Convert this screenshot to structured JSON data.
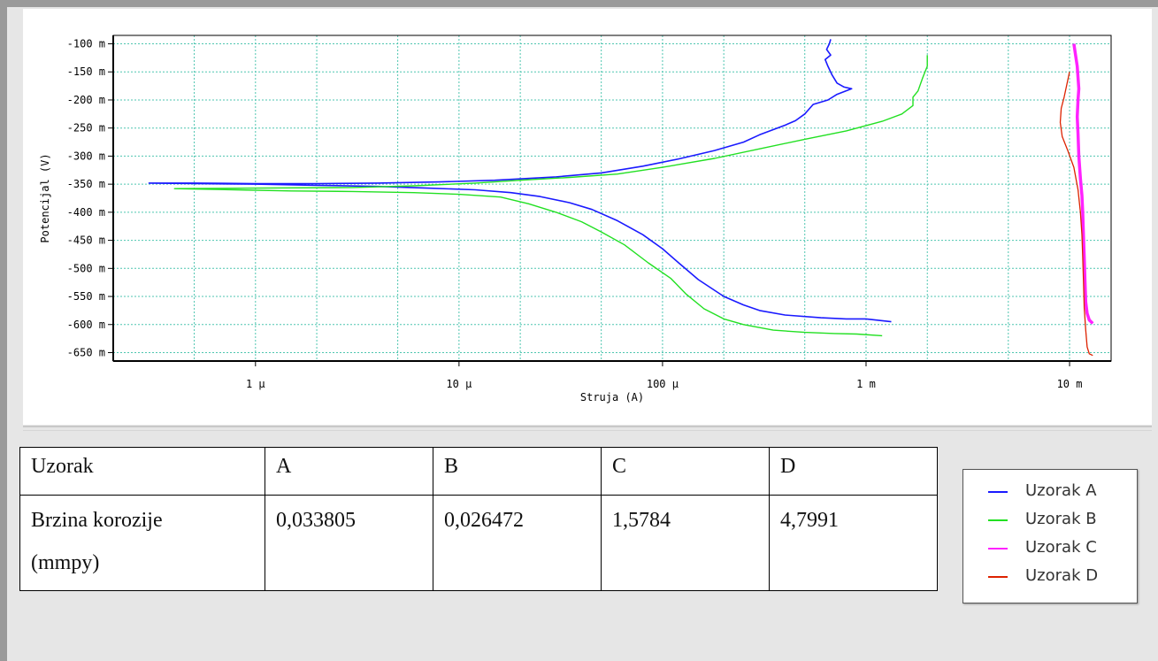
{
  "chart_data": {
    "type": "line",
    "xlabel": "Struja (A)",
    "ylabel": "Potencijal (V)",
    "x_scale": "log",
    "xlim": [
      2e-07,
      0.016
    ],
    "ylim": [
      -665,
      -85
    ],
    "grid": true,
    "x_ticks": [
      {
        "value": 1e-06,
        "label": "1 µ"
      },
      {
        "value": 1e-05,
        "label": "10 µ"
      },
      {
        "value": 0.0001,
        "label": "100 µ"
      },
      {
        "value": 0.001,
        "label": "1 m"
      },
      {
        "value": 0.01,
        "label": "10 m"
      }
    ],
    "y_ticks": [
      {
        "value": -100,
        "label": "-100 m"
      },
      {
        "value": -150,
        "label": "-150 m"
      },
      {
        "value": -200,
        "label": "-200 m"
      },
      {
        "value": -250,
        "label": "-250 m"
      },
      {
        "value": -300,
        "label": "-300 m"
      },
      {
        "value": -350,
        "label": "-350 m"
      },
      {
        "value": -400,
        "label": "-400 m"
      },
      {
        "value": -450,
        "label": "-450 m"
      },
      {
        "value": -500,
        "label": "-500 m"
      },
      {
        "value": -550,
        "label": "-550 m"
      },
      {
        "value": -600,
        "label": "-600 m"
      },
      {
        "value": -650,
        "label": "-650 m"
      }
    ],
    "series": [
      {
        "name": "Uzorak A",
        "color": "#1a1aff",
        "width": 1.6,
        "points": [
          [
            0.00133,
            -595
          ],
          [
            0.001,
            -590
          ],
          [
            0.0008,
            -590
          ],
          [
            0.0006,
            -588
          ],
          [
            0.0004,
            -583
          ],
          [
            0.0003,
            -575
          ],
          [
            0.00025,
            -565
          ],
          [
            0.0002,
            -550
          ],
          [
            0.00015,
            -520
          ],
          [
            0.00012,
            -490
          ],
          [
            0.0001,
            -465
          ],
          [
            8e-05,
            -440
          ],
          [
            6e-05,
            -415
          ],
          [
            4.5e-05,
            -395
          ],
          [
            3.5e-05,
            -383
          ],
          [
            2.5e-05,
            -372
          ],
          [
            1.8e-05,
            -365
          ],
          [
            1.2e-05,
            -360
          ],
          [
            7e-06,
            -357
          ],
          [
            4e-06,
            -354
          ],
          [
            2e-06,
            -352
          ],
          [
            1e-06,
            -350
          ],
          [
            5e-07,
            -349
          ],
          [
            3e-07,
            -348
          ],
          [
            5e-07,
            -348
          ],
          [
            1e-06,
            -349
          ],
          [
            2e-06,
            -349
          ],
          [
            4e-06,
            -348
          ],
          [
            8e-06,
            -346
          ],
          [
            1.5e-05,
            -343
          ],
          [
            3e-05,
            -337
          ],
          [
            5e-05,
            -330
          ],
          [
            8e-05,
            -318
          ],
          [
            0.00012,
            -305
          ],
          [
            0.00018,
            -290
          ],
          [
            0.00025,
            -275
          ],
          [
            0.0003,
            -262
          ],
          [
            0.0004,
            -245
          ],
          [
            0.00045,
            -237
          ],
          [
            0.0005,
            -225
          ],
          [
            0.00055,
            -208
          ],
          [
            0.00065,
            -200
          ],
          [
            0.00072,
            -190
          ],
          [
            0.00085,
            -180
          ],
          [
            0.00078,
            -177
          ],
          [
            0.00072,
            -170
          ],
          [
            0.00068,
            -155
          ],
          [
            0.00065,
            -140
          ],
          [
            0.00063,
            -128
          ],
          [
            0.00067,
            -120
          ],
          [
            0.00064,
            -110
          ],
          [
            0.00066,
            -100
          ],
          [
            0.00067,
            -92
          ]
        ]
      },
      {
        "name": "Uzorak B",
        "color": "#22e022",
        "width": 1.4,
        "points": [
          [
            0.0012,
            -620
          ],
          [
            0.0009,
            -617
          ],
          [
            0.0007,
            -616
          ],
          [
            0.0005,
            -614
          ],
          [
            0.00035,
            -610
          ],
          [
            0.00025,
            -600
          ],
          [
            0.0002,
            -590
          ],
          [
            0.00016,
            -572
          ],
          [
            0.00013,
            -545
          ],
          [
            0.00011,
            -518
          ],
          [
            8.5e-05,
            -490
          ],
          [
            6.5e-05,
            -458
          ],
          [
            5e-05,
            -435
          ],
          [
            4e-05,
            -417
          ],
          [
            3e-05,
            -400
          ],
          [
            2.2e-05,
            -385
          ],
          [
            1.6e-05,
            -373
          ],
          [
            1e-05,
            -368
          ],
          [
            6e-06,
            -365
          ],
          [
            3e-06,
            -363
          ],
          [
            1.5e-06,
            -362
          ],
          [
            8e-07,
            -360
          ],
          [
            4e-07,
            -358
          ],
          [
            1e-06,
            -357
          ],
          [
            3e-06,
            -356
          ],
          [
            6e-06,
            -353
          ],
          [
            1.2e-05,
            -348
          ],
          [
            2e-05,
            -343
          ],
          [
            3.5e-05,
            -338
          ],
          [
            6e-05,
            -332
          ],
          [
            0.0001,
            -320
          ],
          [
            0.00018,
            -304
          ],
          [
            0.0003,
            -287
          ],
          [
            0.0005,
            -270
          ],
          [
            0.0008,
            -255
          ],
          [
            0.0012,
            -238
          ],
          [
            0.0015,
            -225
          ],
          [
            0.0017,
            -210
          ],
          [
            0.0017,
            -195
          ],
          [
            0.0018,
            -184
          ],
          [
            0.0019,
            -160
          ],
          [
            0.002,
            -140
          ],
          [
            0.002,
            -120
          ]
        ]
      },
      {
        "name": "Uzorak C",
        "color": "#ff22ff",
        "width": 3.5,
        "points": [
          [
            0.013,
            -598
          ],
          [
            0.0125,
            -592
          ],
          [
            0.0122,
            -580
          ],
          [
            0.012,
            -560
          ],
          [
            0.0119,
            -520
          ],
          [
            0.0118,
            -480
          ],
          [
            0.0117,
            -440
          ],
          [
            0.0116,
            -400
          ],
          [
            0.0115,
            -370
          ],
          [
            0.0113,
            -340
          ],
          [
            0.0111,
            -300
          ],
          [
            0.011,
            -260
          ],
          [
            0.0109,
            -230
          ],
          [
            0.011,
            -200
          ],
          [
            0.0111,
            -180
          ],
          [
            0.011,
            -160
          ],
          [
            0.0109,
            -140
          ],
          [
            0.0107,
            -120
          ],
          [
            0.0105,
            -100
          ]
        ]
      },
      {
        "name": "Uzorak D",
        "color": "#dd2200",
        "width": 1.3,
        "points": [
          [
            0.013,
            -655
          ],
          [
            0.0125,
            -652
          ],
          [
            0.0122,
            -640
          ],
          [
            0.012,
            -610
          ],
          [
            0.0118,
            -570
          ],
          [
            0.0117,
            -520
          ],
          [
            0.0116,
            -480
          ],
          [
            0.0115,
            -440
          ],
          [
            0.0113,
            -400
          ],
          [
            0.011,
            -360
          ],
          [
            0.0105,
            -320
          ],
          [
            0.0098,
            -290
          ],
          [
            0.0092,
            -265
          ],
          [
            0.009,
            -240
          ],
          [
            0.0091,
            -215
          ],
          [
            0.0094,
            -195
          ],
          [
            0.0097,
            -172
          ],
          [
            0.01,
            -150
          ]
        ]
      }
    ]
  },
  "legend": {
    "items": [
      {
        "label": "Uzorak A",
        "color": "#1a1aff"
      },
      {
        "label": "Uzorak B",
        "color": "#22e022"
      },
      {
        "label": "Uzorak C",
        "color": "#ff22ff"
      },
      {
        "label": "Uzorak D",
        "color": "#dd2200"
      }
    ]
  },
  "table": {
    "header": [
      "Uzorak",
      "A",
      "B",
      "C",
      "D"
    ],
    "row_label": "Brzina korozije (mmpy)",
    "row_label_line1": "Brzina korozije",
    "row_label_line2": "(mmpy)",
    "values": [
      "0,033805",
      "0,026472",
      "1,5784",
      "4,7991"
    ]
  }
}
